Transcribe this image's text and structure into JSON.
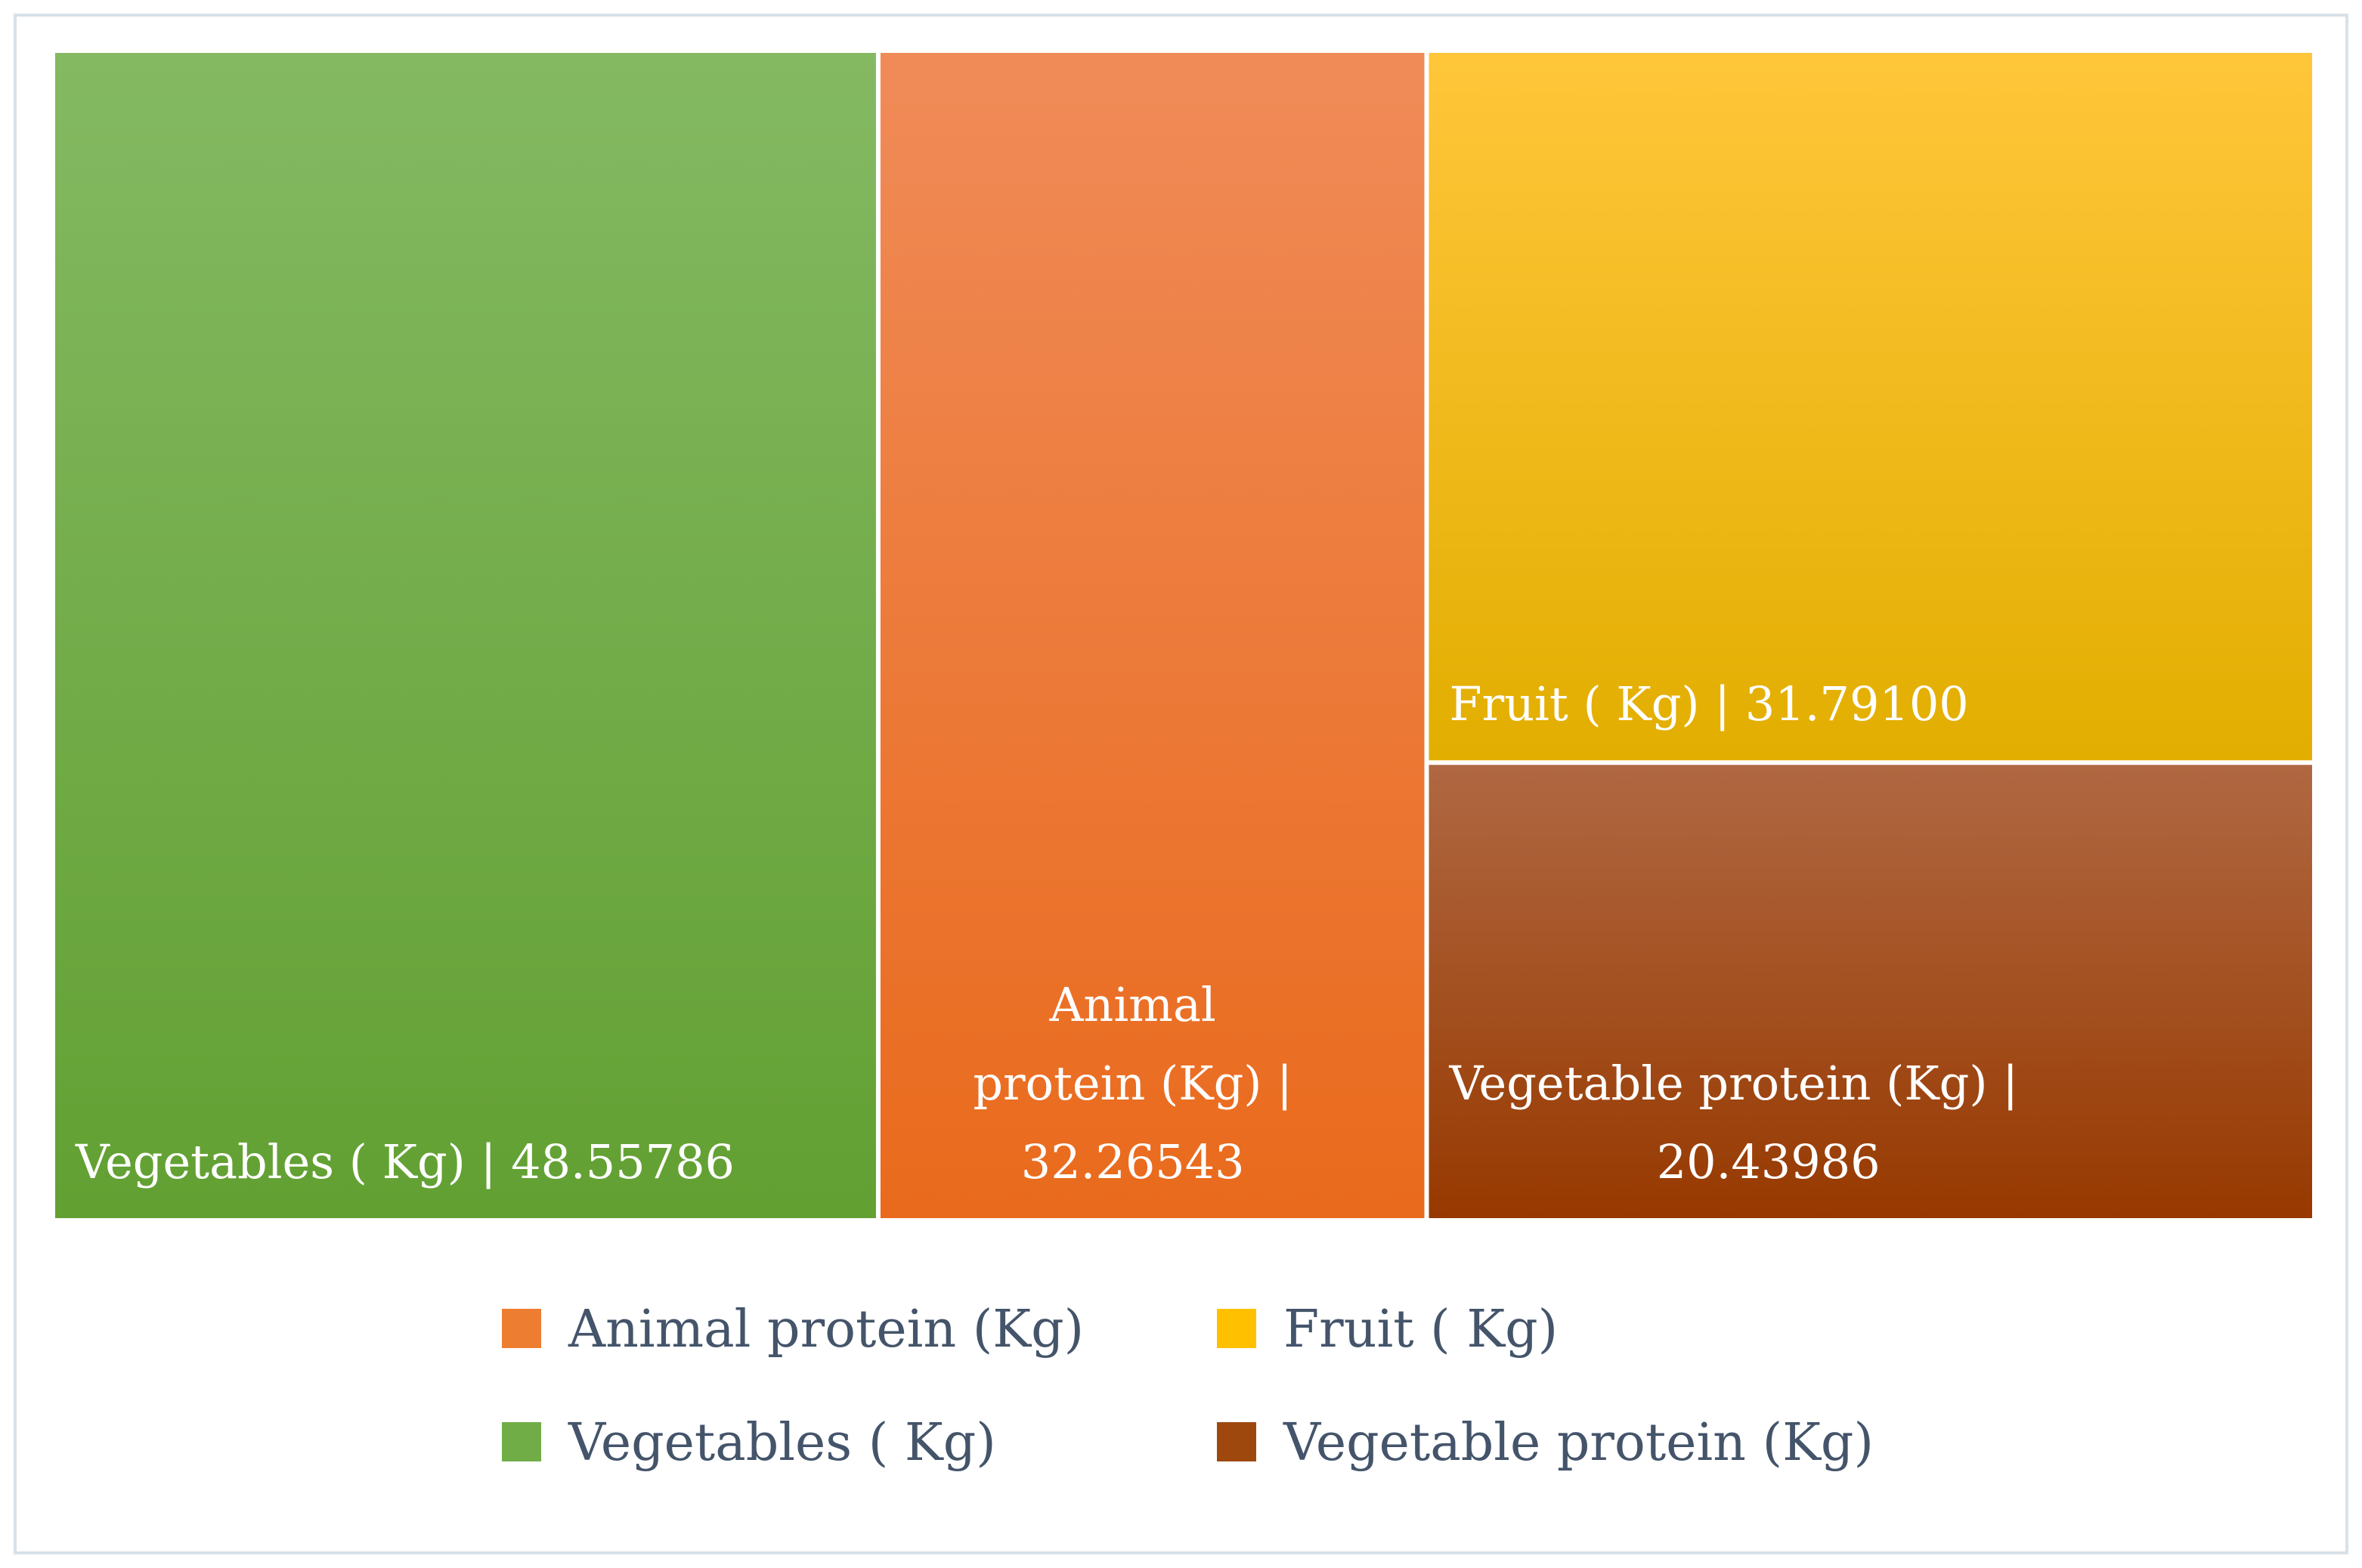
{
  "chart_data": {
    "type": "treemap",
    "title": "",
    "value_separator": "|",
    "items": [
      {
        "name": "Vegetables ( Kg)",
        "value": 48.55786,
        "value_label": "48.55786",
        "color_top": "#84b962",
        "color_bottom": "#62a032"
      },
      {
        "name": "Animal protein  (Kg)",
        "value": 32.26543,
        "value_label": "32.26543",
        "color_top": "#f08b58",
        "color_bottom": "#e96a1c"
      },
      {
        "name": "Fruit ( Kg)",
        "value": 31.791,
        "value_label": "31.79100",
        "color_top": "#ffc63a",
        "color_bottom": "#e2ae00"
      },
      {
        "name": "Vegetable protein   (Kg)",
        "value": 20.43986,
        "value_label": "20.43986",
        "color_top": "#b06842",
        "color_bottom": "#973900"
      }
    ],
    "legend": {
      "position": "bottom",
      "entries": [
        {
          "label": "Animal protein  (Kg)",
          "color": "#ed7d31"
        },
        {
          "label": "Fruit ( Kg)",
          "color": "#ffc000"
        },
        {
          "label": "Vegetables ( Kg)",
          "color": "#70ad47"
        },
        {
          "label": "Vegetable protein   (Kg)",
          "color": "#9e480e"
        }
      ]
    }
  }
}
